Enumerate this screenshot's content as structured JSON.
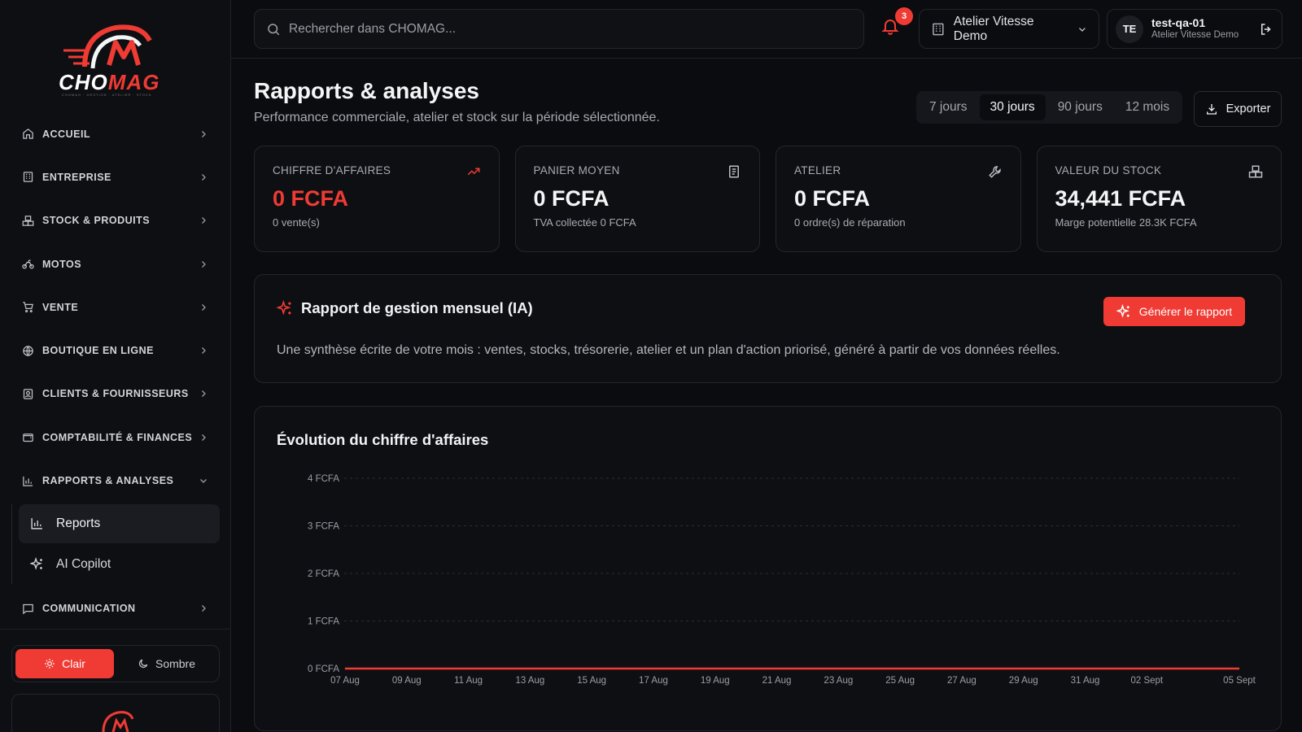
{
  "brand": {
    "logo_text_a": "CHO",
    "logo_text_b": "MAG",
    "tagline": "CHOMAG · GESTION · ATELIER · STOCK"
  },
  "sidebar": {
    "items": [
      {
        "label": "ACCUEIL",
        "icon": "home-icon"
      },
      {
        "label": "ENTREPRISE",
        "icon": "building-icon"
      },
      {
        "label": "STOCK & PRODUITS",
        "icon": "boxes-icon"
      },
      {
        "label": "MOTOS",
        "icon": "bike-icon"
      },
      {
        "label": "VENTE",
        "icon": "cart-icon"
      },
      {
        "label": "BOUTIQUE EN LIGNE",
        "icon": "globe-icon"
      },
      {
        "label": "CLIENTS & FOURNISSEURS",
        "icon": "contacts-icon"
      },
      {
        "label": "COMPTABILITÉ & FINANCES",
        "icon": "wallet-icon"
      },
      {
        "label": "RAPPORTS & ANALYSES",
        "icon": "bar-chart-icon"
      },
      {
        "label": "COMMUNICATION",
        "icon": "message-icon"
      }
    ],
    "sub_items": [
      {
        "label": "Reports",
        "active": true
      },
      {
        "label": "AI Copilot",
        "active": false
      }
    ],
    "theme": {
      "light": "Clair",
      "dark": "Sombre"
    }
  },
  "topbar": {
    "search_placeholder": "Rechercher dans CHOMAG...",
    "notifications": "3",
    "workspace": "Atelier Vitesse Demo",
    "user": {
      "initials": "TE",
      "name": "test-qa-01",
      "org": "Atelier Vitesse Demo"
    }
  },
  "page": {
    "title": "Rapports & analyses",
    "subtitle": "Performance commerciale, atelier et stock sur la période sélectionnée.",
    "periods": [
      "7 jours",
      "30 jours",
      "90 jours",
      "12 mois"
    ],
    "active_period": "30 jours",
    "export_label": "Exporter"
  },
  "kpis": [
    {
      "label": "CHIFFRE D'AFFAIRES",
      "value": "0 FCFA",
      "sub": "0 vente(s)",
      "icon": "trending-up-icon",
      "accent": "#ef3b33"
    },
    {
      "label": "PANIER MOYEN",
      "value": "0 FCFA",
      "sub": "TVA collectée 0 FCFA",
      "icon": "receipt-icon"
    },
    {
      "label": "ATELIER",
      "value": "0 FCFA",
      "sub": "0 ordre(s) de réparation",
      "icon": "wrench-icon"
    },
    {
      "label": "VALEUR DU STOCK",
      "value": "34,441 FCFA",
      "sub": "Marge potentielle 28.3K FCFA",
      "icon": "boxes-icon"
    }
  ],
  "report": {
    "title": "Rapport de gestion mensuel (IA)",
    "button": "Générer le rapport",
    "description": "Une synthèse écrite de votre mois : ventes, stocks, trésorerie, atelier et un plan d'action priorisé, généré à partir de vos données réelles."
  },
  "chart_data": {
    "type": "line",
    "title": "Évolution du chiffre d'affaires",
    "x_ticks": [
      "07 Aug",
      "09 Aug",
      "11 Aug",
      "13 Aug",
      "15 Aug",
      "17 Aug",
      "19 Aug",
      "21 Aug",
      "23 Aug",
      "25 Aug",
      "27 Aug",
      "29 Aug",
      "31 Aug",
      "02 Sept",
      "05 Sept"
    ],
    "y_ticks": [
      "0 FCFA",
      "1 FCFA",
      "2 FCFA",
      "3 FCFA",
      "4 FCFA"
    ],
    "ylim": [
      0,
      4
    ],
    "grid": true,
    "series": [
      {
        "color": "#ef3b33",
        "x": [
          "07 Aug",
          "08 Aug",
          "09 Aug",
          "10 Aug",
          "11 Aug",
          "12 Aug",
          "13 Aug",
          "14 Aug",
          "15 Aug",
          "16 Aug",
          "17 Aug",
          "18 Aug",
          "19 Aug",
          "20 Aug",
          "21 Aug",
          "22 Aug",
          "23 Aug",
          "24 Aug",
          "25 Aug",
          "26 Aug",
          "27 Aug",
          "28 Aug",
          "29 Aug",
          "30 Aug",
          "31 Aug",
          "01 Sept",
          "02 Sept",
          "03 Sept",
          "04 Sept",
          "05 Sept"
        ],
        "values": [
          0,
          0,
          0,
          0,
          0,
          0,
          0,
          0,
          0,
          0,
          0,
          0,
          0,
          0,
          0,
          0,
          0,
          0,
          0,
          0,
          0,
          0,
          0,
          0,
          0,
          0,
          0,
          0,
          0,
          0
        ]
      }
    ]
  }
}
